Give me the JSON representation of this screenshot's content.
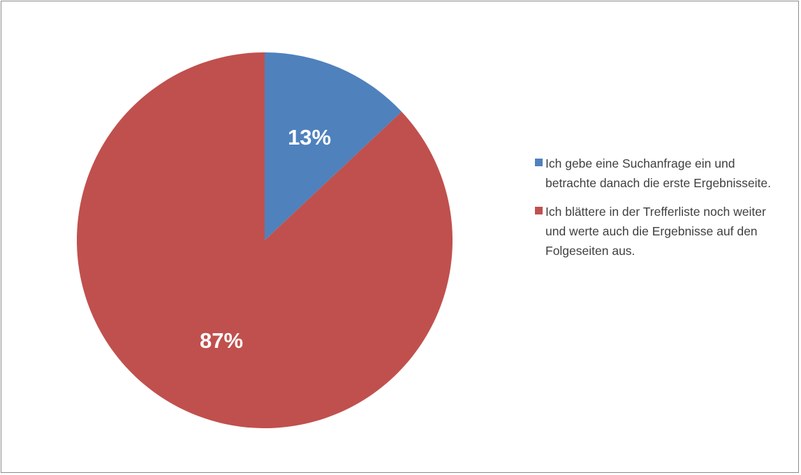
{
  "colors": {
    "series1": "#4f81bd",
    "series2": "#c0504d",
    "border": "#8c8c8c",
    "text": "#404040"
  },
  "chart_data": {
    "type": "pie",
    "title": "",
    "categories": [
      "Ich gebe eine Suchanfrage ein und betrachte danach die erste Ergebnisseite.",
      "Ich blättere in der Trefferliste noch weiter und werte auch die Ergebnisse auf den Folgeseiten aus."
    ],
    "values": [
      13,
      87
    ],
    "data_labels": [
      "13%",
      "87%"
    ],
    "colors": [
      "#4f81bd",
      "#c0504d"
    ],
    "legend_position": "right"
  }
}
